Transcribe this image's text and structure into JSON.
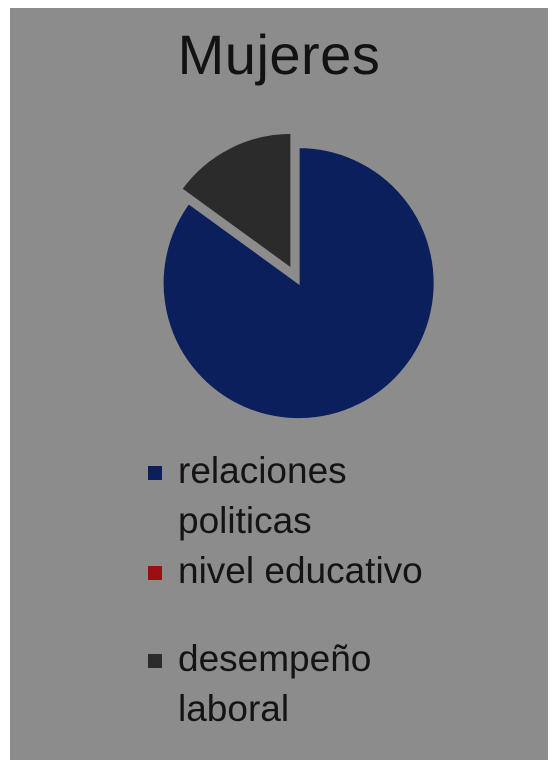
{
  "chart_data": {
    "type": "pie",
    "title": "Mujeres",
    "categories": [
      "relaciones politicas",
      "nivel educativo",
      "desempeño laboral"
    ],
    "values": [
      85,
      0,
      15
    ],
    "colors": [
      "#0a1f5c",
      "#9a1010",
      "#2b2b2b"
    ],
    "legend_position": "bottom",
    "start_angle_deg": 0
  }
}
